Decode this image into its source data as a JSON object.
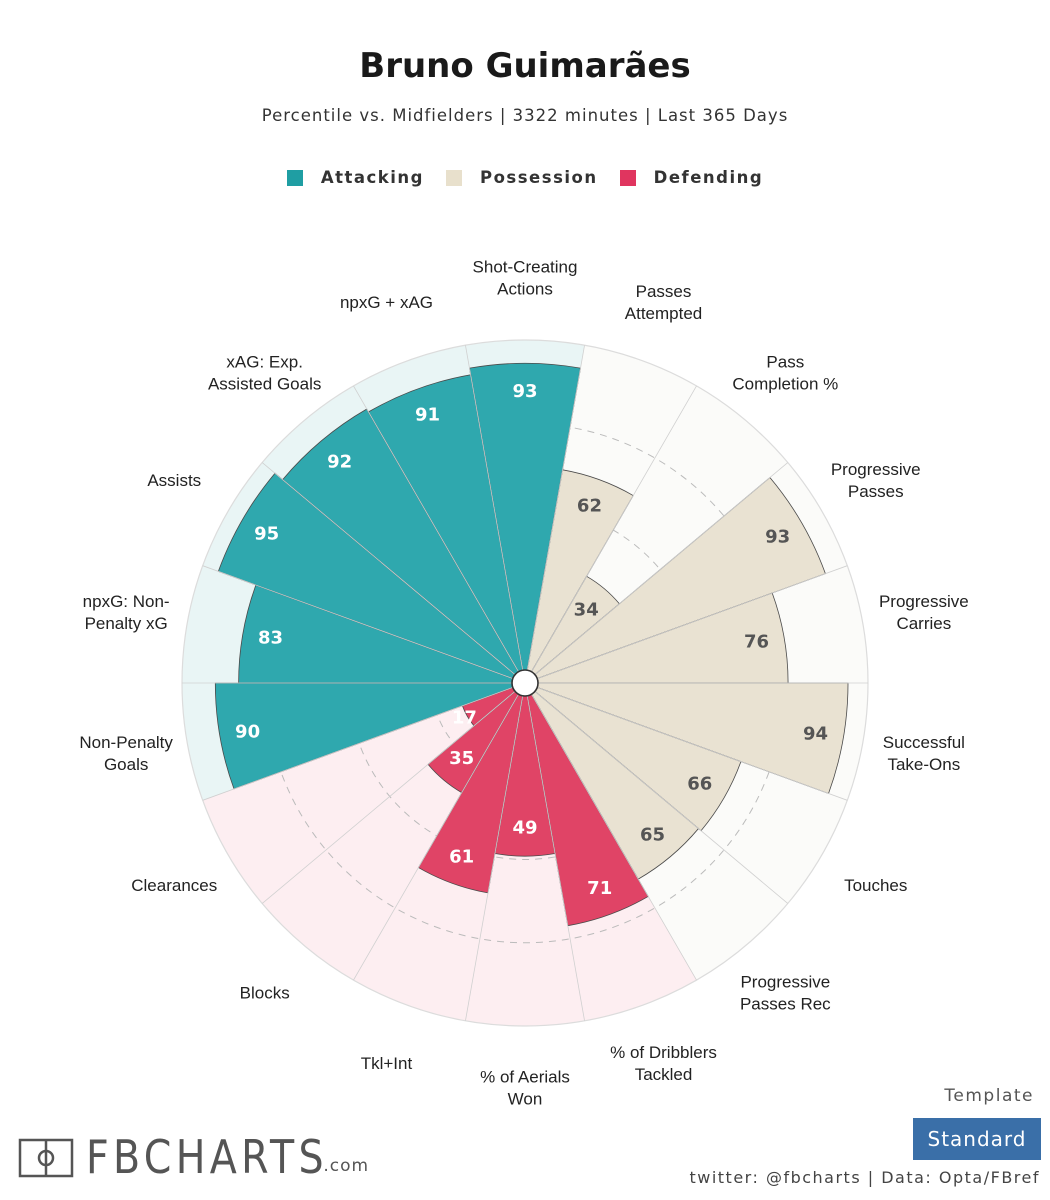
{
  "header": {
    "title": "Bruno Guimarães",
    "subtitle": "Percentile vs. Midfielders | 3322 minutes | Last 365 Days"
  },
  "legend": [
    {
      "label": "Attacking",
      "color": "#1f9ea3"
    },
    {
      "label": "Possession",
      "color": "#e8e0cc"
    },
    {
      "label": "Defending",
      "color": "#e0355f"
    }
  ],
  "colors": {
    "attacking_bar": "#2fa8ae",
    "attacking_bg": "#e9f5f5",
    "possession_bar": "#e9e2d2",
    "possession_bg": "#fbfbf9",
    "defending_bar": "#e04466",
    "defending_bg": "#fdeef1"
  },
  "chart_data": {
    "type": "polar-bar",
    "rlim": [
      0,
      100
    ],
    "categories": [
      {
        "name": "Shot-Creating Actions",
        "group": "Attacking",
        "value": 93
      },
      {
        "name": "Passes Attempted",
        "group": "Possession",
        "value": 62
      },
      {
        "name": "Pass Completion %",
        "group": "Possession",
        "value": 34
      },
      {
        "name": "Progressive Passes",
        "group": "Possession",
        "value": 93
      },
      {
        "name": "Progressive Carries",
        "group": "Possession",
        "value": 76
      },
      {
        "name": "Successful Take-Ons",
        "group": "Possession",
        "value": 94
      },
      {
        "name": "Touches",
        "group": "Possession",
        "value": 66
      },
      {
        "name": "Progressive Passes Rec",
        "group": "Possession",
        "value": 65
      },
      {
        "name": "% of Dribblers Tackled",
        "group": "Defending",
        "value": 71
      },
      {
        "name": "% of Aerials Won",
        "group": "Defending",
        "value": 49
      },
      {
        "name": "Tkl+Int",
        "group": "Defending",
        "value": 61
      },
      {
        "name": "Blocks",
        "group": "Defending",
        "value": 35
      },
      {
        "name": "Clearances",
        "group": "Defending",
        "value": 17
      },
      {
        "name": "Non-Penalty Goals",
        "group": "Attacking",
        "value": 90
      },
      {
        "name": "npxG: Non-Penalty xG",
        "group": "Attacking",
        "value": 83
      },
      {
        "name": "Assists",
        "group": "Attacking",
        "value": 95
      },
      {
        "name": "xAG: Exp. Assisted Goals",
        "group": "Attacking",
        "value": 92
      },
      {
        "name": "npxG + xAG",
        "group": "Attacking",
        "value": 91
      }
    ],
    "category_labels": [
      [
        "Shot-Creating",
        "Actions"
      ],
      [
        "Passes",
        "Attempted"
      ],
      [
        "Pass",
        "Completion %"
      ],
      [
        "Progressive",
        "Passes"
      ],
      [
        "Progressive",
        "Carries"
      ],
      [
        "Successful",
        "Take-Ons"
      ],
      [
        "Touches"
      ],
      [
        "Progressive",
        "Passes Rec"
      ],
      [
        "% of Dribblers",
        "Tackled"
      ],
      [
        "% of Aerials",
        "Won"
      ],
      [
        "Tkl+Int"
      ],
      [
        "Blocks"
      ],
      [
        "Clearances"
      ],
      [
        "Non-Penalty",
        "Goals"
      ],
      [
        "npxG: Non-",
        "Penalty xG"
      ],
      [
        "Assists"
      ],
      [
        "xAG: Exp.",
        "Assisted Goals"
      ],
      [
        "npxG + xAG"
      ]
    ]
  },
  "footer": {
    "brand": "FBCHARTS",
    "brand_suffix": ".com",
    "template_label": "Template",
    "template_button": "Standard",
    "credits": "twitter: @fbcharts | Data: Opta/FBref"
  }
}
